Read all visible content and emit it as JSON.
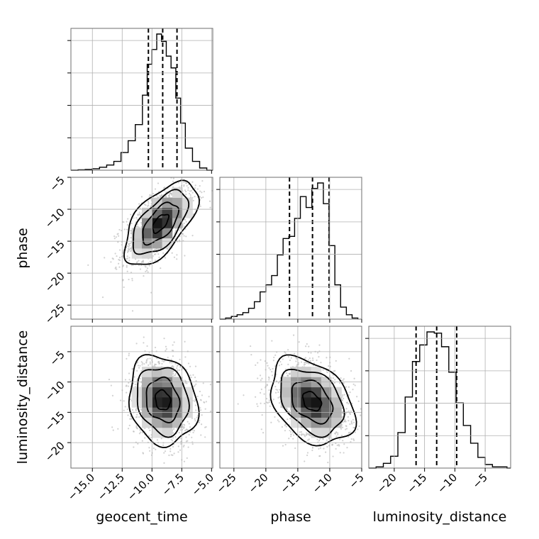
{
  "chart_data": {
    "type": "corner",
    "parameters": [
      "geocent_time",
      "phase",
      "luminosity_distance"
    ],
    "grid": true,
    "quantile_lines": "dashed",
    "axes": {
      "geocent_time": {
        "range": [
          -16.8,
          -4.9
        ],
        "ticks": [
          -15.0,
          -12.5,
          -10.0,
          -7.5,
          -5.0
        ],
        "tick_labels": [
          "−15.0",
          "−12.5",
          "−10.0",
          "−7.5",
          "−5.0"
        ]
      },
      "phase": {
        "range": [
          -27.2,
          -5.0
        ],
        "ticks": [
          -25,
          -20,
          -15,
          -10,
          -5
        ],
        "tick_labels": [
          "−25",
          "−20",
          "−15",
          "−10",
          "−5"
        ]
      },
      "luminosity_distance": {
        "range": [
          -24.2,
          -0.8
        ],
        "ticks": [
          -20,
          -15,
          -10,
          -5
        ],
        "tick_labels": [
          "−20",
          "−15",
          "−10",
          "−5"
        ]
      }
    },
    "marginals": [
      {
        "parameter": "geocent_time",
        "bin_edges": [
          -16.8,
          -16.2,
          -15.6,
          -15.0,
          -14.4,
          -13.8,
          -13.2,
          -12.6,
          -12.0,
          -11.4,
          -10.8,
          -10.4,
          -10.0,
          -9.6,
          -9.2,
          -8.8,
          -8.4,
          -8.0,
          -7.6,
          -7.2,
          -6.6,
          -6.0,
          -5.4,
          -4.9
        ],
        "counts": [
          0,
          0.5,
          1,
          2,
          4,
          7,
          12,
          24,
          40,
          62,
          102,
          144,
          164,
          185,
          175,
          155,
          139,
          98,
          64,
          30,
          12,
          3,
          0
        ],
        "quantiles": [
          -10.3,
          -9.1,
          -7.9
        ]
      },
      {
        "parameter": "phase",
        "bin_edges": [
          -27.2,
          -26.3,
          -25.4,
          -24.5,
          -23.6,
          -22.7,
          -21.8,
          -20.9,
          -20.0,
          -19.1,
          -18.2,
          -17.3,
          -16.4,
          -15.5,
          -14.6,
          -13.7,
          -12.8,
          -11.9,
          -11.0,
          -10.1,
          -9.2,
          -8.3,
          -7.4,
          -6.5,
          -5.6
        ],
        "counts": [
          0,
          2,
          5,
          8,
          12,
          20,
          32,
          50,
          63,
          80,
          118,
          148,
          152,
          185,
          225,
          205,
          240,
          250,
          212,
          135,
          63,
          22,
          8,
          2
        ],
        "quantiles": [
          -16.3,
          -12.7,
          -10.1
        ]
      },
      {
        "parameter": "luminosity_distance",
        "bin_edges": [
          -24.2,
          -23.0,
          -21.8,
          -20.6,
          -19.4,
          -18.2,
          -17.0,
          -15.8,
          -14.6,
          -13.4,
          -12.2,
          -11.0,
          -9.8,
          -8.6,
          -7.4,
          -6.2,
          -5.0,
          -3.8,
          -2.6,
          -1.4,
          -0.8
        ],
        "counts": [
          0,
          2,
          8,
          20,
          60,
          120,
          180,
          208,
          230,
          228,
          205,
          162,
          110,
          72,
          42,
          18,
          6,
          2,
          2,
          0
        ],
        "quantiles": [
          -16.4,
          -13.0,
          -9.7
        ]
      }
    ],
    "joint": [
      {
        "x": "geocent_time",
        "y": "phase",
        "center": [
          -9.3,
          -12.2
        ],
        "sigma": [
          1.5,
          3.2
        ],
        "correlation": 0.6,
        "contours": [
          "levels of the 2D density"
        ]
      },
      {
        "x": "geocent_time",
        "y": "luminosity_distance",
        "center": [
          -9.1,
          -13.0
        ],
        "sigma": [
          1.4,
          3.6
        ],
        "correlation": -0.15,
        "contours": [
          "levels of the 2D density"
        ]
      },
      {
        "x": "phase",
        "y": "luminosity_distance",
        "center": [
          -12.8,
          -13.2
        ],
        "sigma": [
          3.2,
          3.5
        ],
        "correlation": -0.35,
        "contours": [
          "levels of the 2D density"
        ]
      }
    ]
  }
}
